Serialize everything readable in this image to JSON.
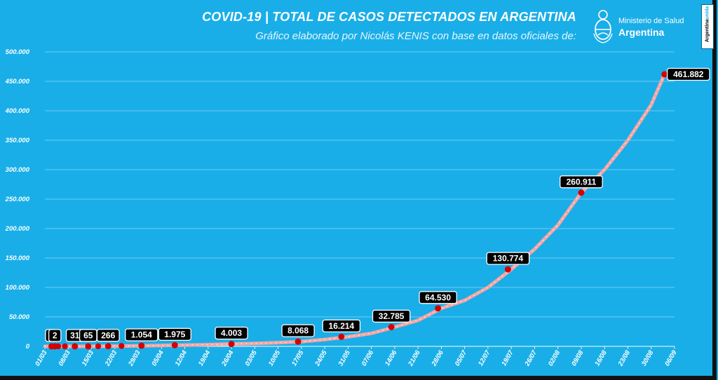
{
  "header": {
    "title": "COVID-19  |  TOTAL DE CASOS DETECTADOS EN ARGENTINA",
    "subtitle": "Gráfico elaborado por Nicolás KENIS con base en datos oficiales de:"
  },
  "logo": {
    "line1": "Ministerio de Salud",
    "line2": "Argentina",
    "icon": "argentina-coat-of-arms-icon"
  },
  "badge": {
    "prefix": "Argentina",
    "suffix": "unida"
  },
  "colors": {
    "background": "#19aee8",
    "line": "#f2a6a6",
    "marker": "#d40000",
    "label_bg": "#000000",
    "grid": "#8fd6f5"
  },
  "chart_data": {
    "type": "line",
    "title": "COVID-19  |  TOTAL DE CASOS DETECTADOS EN ARGENTINA",
    "xlabel": "",
    "ylabel": "",
    "ylim": [
      0,
      500000
    ],
    "yticks": [
      0,
      50000,
      100000,
      150000,
      200000,
      250000,
      300000,
      350000,
      400000,
      450000,
      500000
    ],
    "ytick_labels": [
      "0",
      "50.000",
      "100.000",
      "150.000",
      "200.000",
      "250.000",
      "300.000",
      "350.000",
      "400.000",
      "450.000",
      "500.000"
    ],
    "xtick_labels": [
      "01/03",
      "08/03",
      "15/03",
      "22/03",
      "29/03",
      "05/04",
      "12/04",
      "19/04",
      "26/04",
      "03/05",
      "10/05",
      "17/05",
      "24/05",
      "31/05",
      "07/06",
      "14/06",
      "21/06",
      "28/06",
      "05/07",
      "12/07",
      "19/07",
      "26/07",
      "02/08",
      "09/08",
      "16/08",
      "23/08",
      "30/08",
      "06/09"
    ],
    "x_range_days": [
      0,
      189
    ],
    "grid": true,
    "series": [
      {
        "x_days": [
          0,
          7,
          14,
          21,
          28,
          35,
          42,
          49,
          56,
          63,
          70,
          77,
          84,
          91,
          98,
          105,
          112,
          119,
          126,
          133,
          140,
          147,
          154,
          161,
          168,
          175,
          182,
          186
        ],
        "values": [
          1,
          2,
          45,
          225,
          820,
          1450,
          2140,
          2900,
          4003,
          4900,
          6300,
          8068,
          11500,
          16214,
          22000,
          32785,
          44000,
          64530,
          78000,
          100000,
          130774,
          165000,
          206000,
          260911,
          300000,
          350000,
          410000,
          461882
        ]
      }
    ],
    "annotations": [
      {
        "day": 2,
        "value": 1,
        "label": "1"
      },
      {
        "day": 3,
        "value": 2,
        "label": "2"
      },
      {
        "day": 9,
        "value": 31,
        "label": "31"
      },
      {
        "day": 13,
        "value": 65,
        "label": "65"
      },
      {
        "day": 19,
        "value": 266,
        "label": "266"
      },
      {
        "day": 29,
        "value": 1054,
        "label": "1.054"
      },
      {
        "day": 39,
        "value": 1975,
        "label": "1.975"
      },
      {
        "day": 56,
        "value": 4003,
        "label": "4.003"
      },
      {
        "day": 76,
        "value": 8068,
        "label": "8.068"
      },
      {
        "day": 89,
        "value": 16214,
        "label": "16.214"
      },
      {
        "day": 104,
        "value": 32785,
        "label": "32.785"
      },
      {
        "day": 118,
        "value": 64530,
        "label": "64.530"
      },
      {
        "day": 139,
        "value": 130774,
        "label": "130.774"
      },
      {
        "day": 161,
        "value": 260911,
        "label": "260.911"
      },
      {
        "day": 186,
        "value": 461882,
        "label": "461.882"
      }
    ],
    "extra_markers": [
      {
        "day": 3,
        "value": 2
      },
      {
        "day": 4,
        "value": 12
      },
      {
        "day": 6,
        "value": 17
      },
      {
        "day": 16,
        "value": 128
      },
      {
        "day": 23,
        "value": 589
      }
    ]
  }
}
